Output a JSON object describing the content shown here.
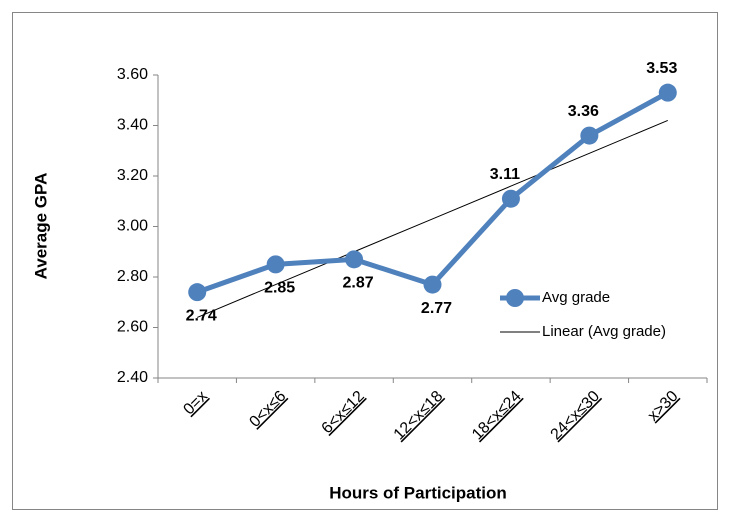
{
  "chart_data": {
    "type": "line",
    "x_label": "Hours of Participation",
    "y_label": "Average GPA",
    "categories": [
      "0=x",
      "0<x≤6",
      "6<x≤12",
      "12<x≤18",
      "18<x≤24",
      "24<x≤30",
      "x>30"
    ],
    "series": [
      {
        "name": "Avg grade",
        "color": "#4f81bd",
        "values": [
          2.74,
          2.85,
          2.87,
          2.77,
          3.11,
          3.36,
          3.53
        ]
      },
      {
        "name": "Linear (Avg grade)",
        "color": "#000000",
        "values": [
          2.64,
          2.77,
          2.9,
          3.03,
          3.16,
          3.29,
          3.42
        ]
      }
    ],
    "ylim": [
      2.4,
      3.6
    ],
    "yticks": [
      {
        "value": 2.4,
        "label": "2.40"
      },
      {
        "value": 2.6,
        "label": "2.60"
      },
      {
        "value": 2.8,
        "label": "2.80"
      },
      {
        "value": 3.0,
        "label": "3.00"
      },
      {
        "value": 3.2,
        "label": "3.20"
      },
      {
        "value": 3.4,
        "label": "3.40"
      },
      {
        "value": 3.6,
        "label": "3.60"
      }
    ],
    "grid": false,
    "legend": "right"
  }
}
